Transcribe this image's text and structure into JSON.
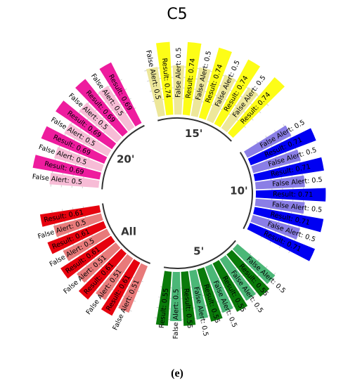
{
  "chart_data": {
    "type": "bar",
    "layout": "circular",
    "title": "C5",
    "panel_label": "(e)",
    "groups": [
      {
        "name": "20'",
        "colors": [
          "#f7bcd6",
          "#ee1c9e"
        ],
        "bars": [
          {
            "label": "False Alert: 0.5",
            "value": 0.5
          },
          {
            "label": "Result: 0.69",
            "value": 0.69
          },
          {
            "label": "False Alert: 0.5",
            "value": 0.5
          },
          {
            "label": "Result: 0.69",
            "value": 0.69
          },
          {
            "label": "False Alert: 0.5",
            "value": 0.5
          },
          {
            "label": "Result: 0.69",
            "value": 0.69
          },
          {
            "label": "False Alert: 0.5",
            "value": 0.5
          },
          {
            "label": "Result: 0.69",
            "value": 0.69
          },
          {
            "label": "False Alert: 0.5",
            "value": 0.5
          },
          {
            "label": "Result: 0.69",
            "value": 0.69
          }
        ]
      },
      {
        "name": "15'",
        "colors": [
          "#ede79a",
          "#fdfd17"
        ],
        "bars": [
          {
            "label": "False Alert: 0.5",
            "value": 0.5
          },
          {
            "label": "Result: 0.74",
            "value": 0.74
          },
          {
            "label": "False Alert: 0.5",
            "value": 0.5
          },
          {
            "label": "Result: 0.74",
            "value": 0.74
          },
          {
            "label": "False Alert: 0.5",
            "value": 0.5
          },
          {
            "label": "Result: 0.74",
            "value": 0.74
          },
          {
            "label": "False Alert: 0.5",
            "value": 0.5
          },
          {
            "label": "Result: 0.74",
            "value": 0.74
          },
          {
            "label": "False Alert: 0.5",
            "value": 0.5
          },
          {
            "label": "Result: 0.74",
            "value": 0.74
          }
        ]
      },
      {
        "name": "10'",
        "colors": [
          "#8a7ee6",
          "#0000f2"
        ],
        "bars": [
          {
            "label": "False Alert: 0.5",
            "value": 0.5
          },
          {
            "label": "Result: 0.71",
            "value": 0.71
          },
          {
            "label": "False Alert: 0.5",
            "value": 0.5
          },
          {
            "label": "Result: 0.71",
            "value": 0.71
          },
          {
            "label": "False Alert: 0.5",
            "value": 0.5
          },
          {
            "label": "Result: 0.71",
            "value": 0.71
          },
          {
            "label": "False Alert: 0.5",
            "value": 0.5
          },
          {
            "label": "Result: 0.71",
            "value": 0.71
          },
          {
            "label": "False Alert: 0.5",
            "value": 0.5
          },
          {
            "label": "Result: 0.71",
            "value": 0.71
          }
        ]
      },
      {
        "name": "5'",
        "colors": [
          "#4bb777",
          "#0a7a0a"
        ],
        "bars": [
          {
            "label": "False Alert: 0.5",
            "value": 0.5
          },
          {
            "label": "Result: 0.55",
            "value": 0.55
          },
          {
            "label": "False Alert: 0.5",
            "value": 0.5
          },
          {
            "label": "Result: 0.55",
            "value": 0.55
          },
          {
            "label": "False Alert: 0.5",
            "value": 0.5
          },
          {
            "label": "Result: 0.55",
            "value": 0.55
          },
          {
            "label": "False Alert: 0.5",
            "value": 0.5
          },
          {
            "label": "Result: 0.55",
            "value": 0.55
          },
          {
            "label": "False Alert: 0.5",
            "value": 0.5
          },
          {
            "label": "Result: 0.55",
            "value": 0.55
          }
        ]
      },
      {
        "name": "All",
        "colors": [
          "#e87a7a",
          "#e6020e"
        ],
        "bars": [
          {
            "label": "False Alert: 0.51",
            "value": 0.51
          },
          {
            "label": "Result: 0.61",
            "value": 0.61
          },
          {
            "label": "False Alert: 0.51",
            "value": 0.51
          },
          {
            "label": "Result: 0.61",
            "value": 0.61
          },
          {
            "label": "False Alert: 0.51",
            "value": 0.51
          },
          {
            "label": "Result: 0.61",
            "value": 0.61
          },
          {
            "label": "False Alert: 0.5",
            "value": 0.5
          },
          {
            "label": "Result: 0.61",
            "value": 0.61
          },
          {
            "label": "False Alert: 0.5",
            "value": 0.5
          },
          {
            "label": "Result: 0.61",
            "value": 0.61
          }
        ]
      }
    ]
  }
}
